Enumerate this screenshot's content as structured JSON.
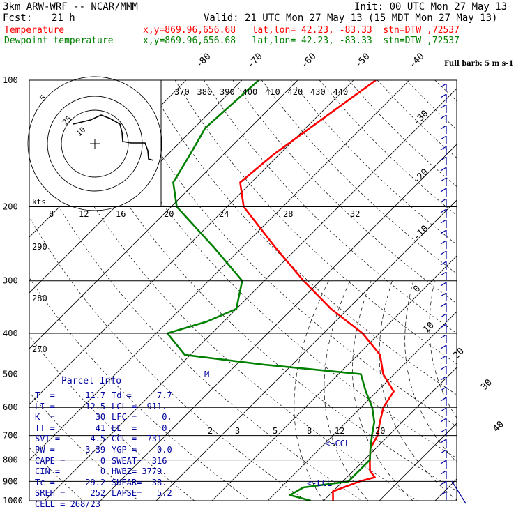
{
  "header": {
    "model": "3km ARW-WRF -- NCAR/MMM",
    "init": "Init: 00 UTC Mon 27 May 13",
    "fcst_label": "Fcst:",
    "fcst_value": "21 h",
    "valid": "Valid: 21 UTC Mon 27 May 13 (15 MDT Mon 27 May 13)",
    "temperature_label": "Temperature",
    "temperature_info": "x,y=869.96,656.68   lat,lon= 42.23, -83.33  stn=DTW ,72537",
    "dewpoint_label": "Dewpoint temperature",
    "dewpoint_info": "x,y=869.96,656.68   lat,lon= 42.23, -83.33  stn=DTW ,72537"
  },
  "colors": {
    "temperature": "#ff0000",
    "dewpoint": "#008000",
    "parcel_text": "#0000a0",
    "wind_barbs": "#0000a0",
    "grid": "#000000"
  },
  "chart_data": {
    "type": "line",
    "title": "",
    "ylabel": "",
    "xlabel": "",
    "y_ticks": [
      100,
      200,
      300,
      400,
      500,
      600,
      700,
      800,
      900,
      1000
    ],
    "x_ticks_top": [
      "-80",
      "-70",
      "-60",
      "-50",
      "-40"
    ],
    "x_ticks_right": [
      "-30",
      "-20",
      "-10",
      "0",
      "10",
      "20",
      "30",
      "40"
    ],
    "theta_labels": [
      "370",
      "380",
      "390",
      "400",
      "410",
      "420",
      "430",
      "440"
    ],
    "theta_e_labels": [
      "290",
      "280",
      "270"
    ],
    "mixing_ratio_labels": [
      "2",
      "3",
      "5",
      "8",
      "12",
      "20"
    ],
    "hodograph_labels": {
      "ring_labels": [
        "5",
        "10",
        "25"
      ],
      "speed_label": "kts",
      "speed_ticks": [
        "8",
        "12",
        "16",
        "20",
        "24",
        "28",
        "32"
      ]
    },
    "barb_legend": "Full barb: 5 m s-1",
    "markers": {
      "ccl": "<-CCL",
      "lcl": "<-LCL",
      "m": "M"
    },
    "series": [
      {
        "name": "Temperature",
        "color": "#ff0000",
        "points": [
          [
            100,
            -56
          ],
          [
            150,
            -61
          ],
          [
            175,
            -62
          ],
          [
            200,
            -57
          ],
          [
            250,
            -44
          ],
          [
            300,
            -33
          ],
          [
            350,
            -23
          ],
          [
            400,
            -13
          ],
          [
            450,
            -6
          ],
          [
            500,
            -2
          ],
          [
            550,
            3
          ],
          [
            600,
            4
          ],
          [
            650,
            6
          ],
          [
            700,
            8
          ],
          [
            750,
            9
          ],
          [
            800,
            11
          ],
          [
            850,
            13
          ],
          [
            880,
            15
          ],
          [
            900,
            13
          ],
          [
            950,
            10
          ],
          [
            1000,
            11.7
          ]
        ]
      },
      {
        "name": "Dewpoint temperature",
        "color": "#008000",
        "points": [
          [
            100,
            -77
          ],
          [
            130,
            -78
          ],
          [
            150,
            -76
          ],
          [
            175,
            -74
          ],
          [
            200,
            -69
          ],
          [
            250,
            -55
          ],
          [
            300,
            -44
          ],
          [
            350,
            -40
          ],
          [
            375,
            -43
          ],
          [
            400,
            -48
          ],
          [
            450,
            -41
          ],
          [
            475,
            -25
          ],
          [
            500,
            -6
          ],
          [
            550,
            -2
          ],
          [
            600,
            2
          ],
          [
            650,
            5
          ],
          [
            700,
            7
          ],
          [
            750,
            9
          ],
          [
            800,
            11
          ],
          [
            850,
            11
          ],
          [
            900,
            11
          ],
          [
            930,
            4
          ],
          [
            970,
            3
          ],
          [
            1000,
            7.7
          ]
        ]
      }
    ]
  },
  "parcel_info": {
    "title": "Parcel Info",
    "rows": [
      [
        "T  =      11.7",
        "Td =     7.7"
      ],
      [
        "LI =      12.5",
        "LCL =  911."
      ],
      [
        "K  =        30",
        "LFC =     0."
      ],
      [
        "TT =        41",
        "EL  =     0."
      ],
      [
        "SVI =      4.5",
        "CCL =  731."
      ],
      [
        "PW =      3.39",
        "YGP =    0.0"
      ],
      [
        "CAPE =       0",
        "SWEAT=  316"
      ],
      [
        "CIN =        0",
        "HWBZ= 3779."
      ],
      [
        "Tc =      29.2",
        "SHEAR=  38."
      ],
      [
        "SREH =     252",
        "LAPSE=   5.2"
      ],
      [
        "CELL = 268/23",
        ""
      ]
    ]
  }
}
